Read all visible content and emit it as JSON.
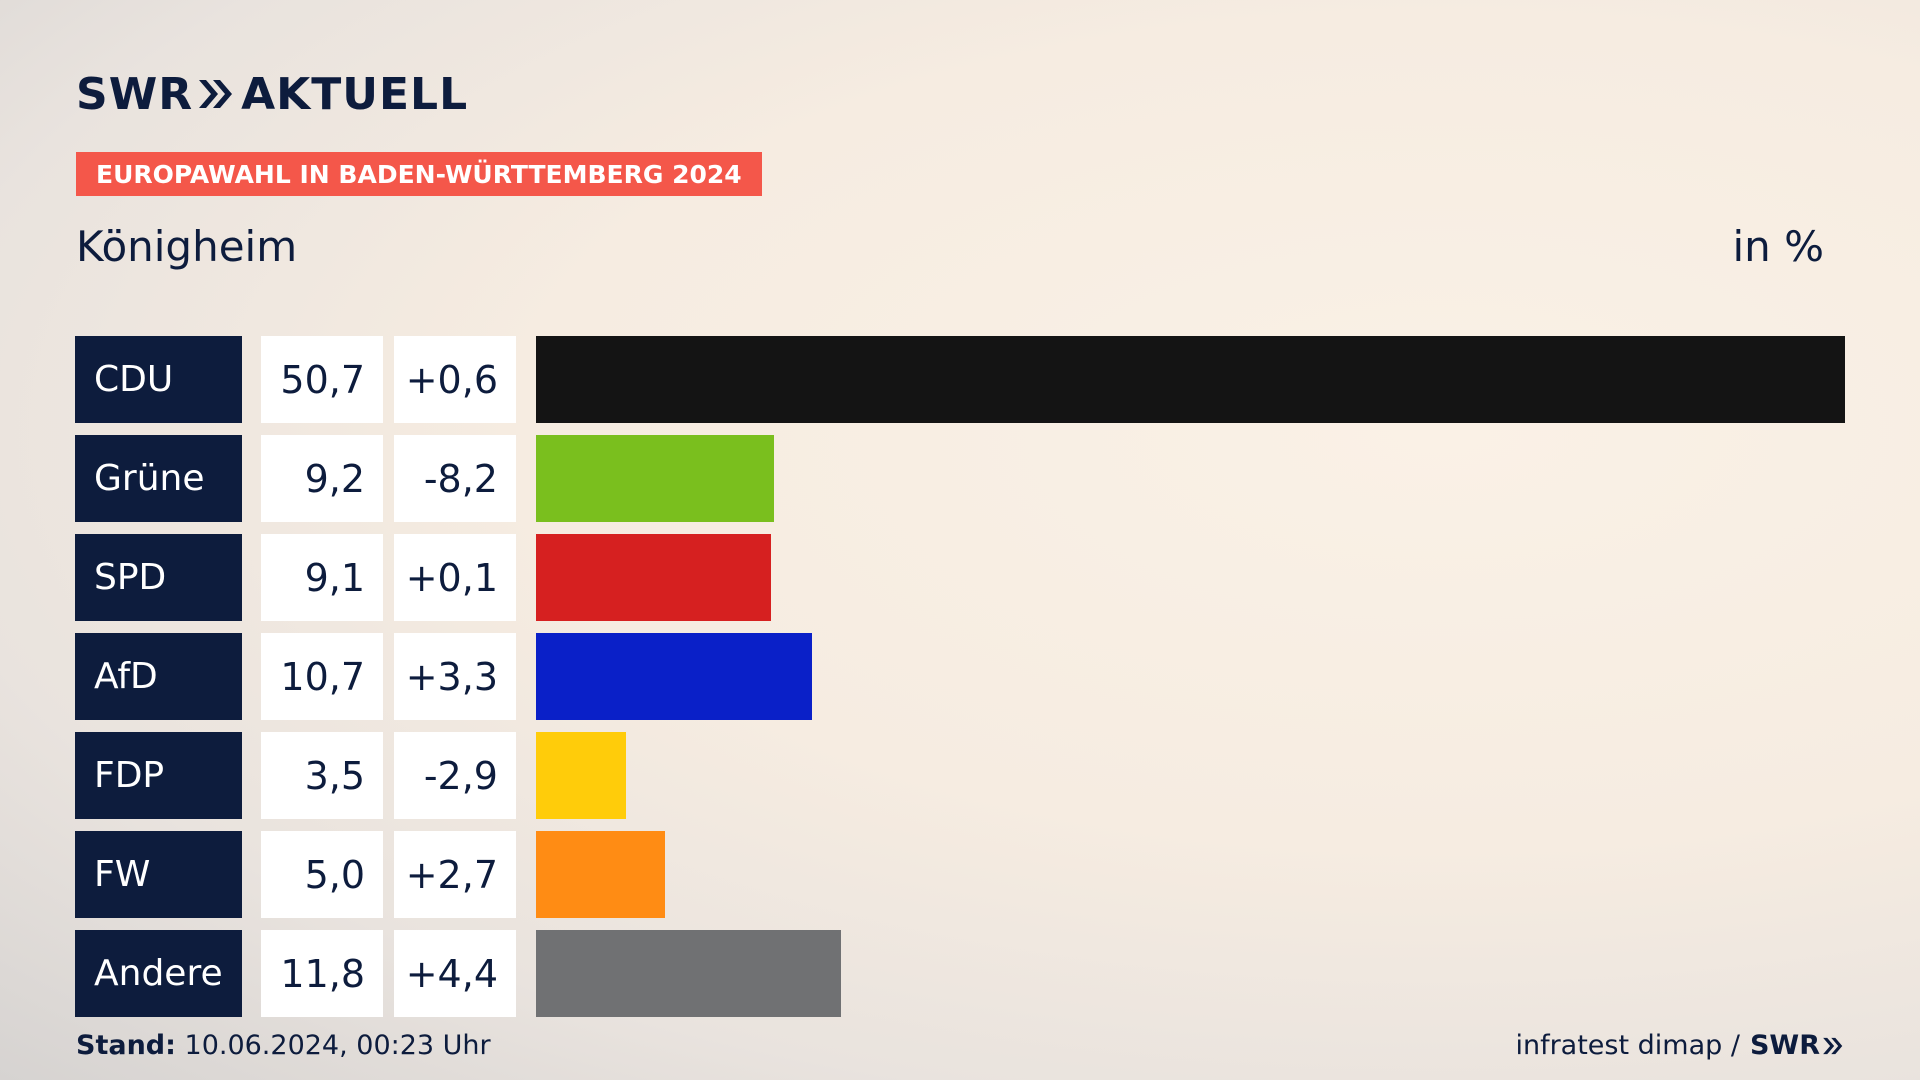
{
  "header": {
    "logo_swr": "SWR",
    "logo_aktuell": "AKTUELL",
    "banner": "EUROPAWAHL IN BADEN-WÜRTTEMBERG 2024",
    "place": "Königheim",
    "unit": "in %"
  },
  "chart_data": {
    "type": "bar",
    "orientation": "horizontal",
    "categories": [
      "CDU",
      "Grüne",
      "SPD",
      "AfD",
      "FDP",
      "FW",
      "Andere"
    ],
    "values": [
      50.7,
      9.2,
      9.1,
      10.7,
      3.5,
      5.0,
      11.8
    ],
    "value_labels": [
      "50,7",
      "9,2",
      "9,1",
      "10,7",
      "3,5",
      "5,0",
      "11,8"
    ],
    "changes": [
      0.6,
      -8.2,
      0.1,
      3.3,
      -2.9,
      2.7,
      4.4
    ],
    "change_labels": [
      "+0,6",
      "-8,2",
      "+0,1",
      "+3,3",
      "-2,9",
      "+2,7",
      "+4,4"
    ],
    "colors": [
      "#141414",
      "#7abf1e",
      "#d62020",
      "#0a20c8",
      "#ffcc0a",
      "#ff8c14",
      "#707173"
    ],
    "unit": "in %",
    "xlim": [
      0,
      50.7
    ]
  },
  "footer": {
    "stand_label": "Stand:",
    "stand_value": "10.06.2024, 00:23 Uhr",
    "source": "infratest dimap /",
    "source_brand": "SWR"
  }
}
